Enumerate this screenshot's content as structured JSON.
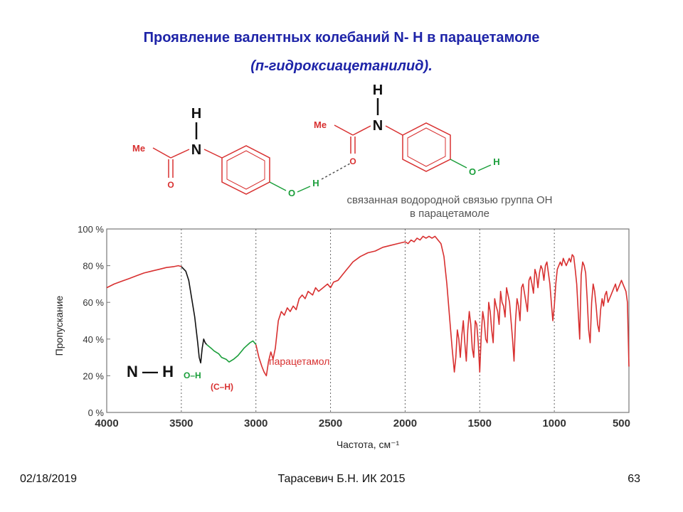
{
  "slide": {
    "title_line1": "Проявление валентных колебаний N- H в парацетамоле",
    "title_line2": "(п-гидроксиацетанилид).",
    "footer_date": "02/18/2019",
    "footer_author": "Тарасевич Б.Н.  ИК 2015",
    "footer_page": "63"
  },
  "molecules": {
    "atom_h": "H",
    "atom_n": "N",
    "atom_o": "O",
    "group_me": "Me",
    "caption_line1": "связанная водородной связью группа ОН",
    "caption_line2": "в парацетамоле",
    "colors": {
      "ring": "#d83030",
      "nh": "#111111",
      "oh": "#1a9e3a",
      "hbond": "#555555",
      "caption": "#555555"
    }
  },
  "chart_data": {
    "type": "line",
    "xlabel": "Частота, см⁻¹",
    "ylabel": "Пропускание",
    "xlim": [
      4000,
      500
    ],
    "ylim": [
      0,
      100
    ],
    "x_ticks": [
      4000,
      3500,
      3000,
      2500,
      2000,
      1500,
      1000,
      500
    ],
    "y_ticks": [
      {
        "v": 0,
        "label": "0 %"
      },
      {
        "v": 20,
        "label": "20 %"
      },
      {
        "v": 40,
        "label": "40 %"
      },
      {
        "v": 60,
        "label": "60 %"
      },
      {
        "v": 80,
        "label": "80 %"
      },
      {
        "v": 100,
        "label": "100 %"
      }
    ],
    "gridlines_x": [
      3500,
      3000,
      2500,
      2000,
      1500,
      1000
    ],
    "annotations": {
      "nh_label": "N — H",
      "oh_label": "O–H",
      "ch_label": "(C–H)",
      "series_label": "парацетамол"
    },
    "series": [
      {
        "color": "#d83030",
        "x": [
          4000,
          3950,
          3900,
          3850,
          3800,
          3750,
          3700,
          3650,
          3600,
          3550,
          3520,
          3500
        ],
        "y": [
          68,
          70,
          71.5,
          73,
          74.5,
          76,
          77,
          78,
          79,
          79.5,
          80,
          79.5
        ]
      },
      {
        "color": "#111111",
        "x": [
          3500,
          3470,
          3450,
          3430,
          3410,
          3400,
          3390,
          3380,
          3370,
          3360,
          3350,
          3340,
          3330
        ],
        "y": [
          79.5,
          77,
          72,
          62,
          52,
          45,
          38,
          30,
          27,
          35,
          40,
          38,
          37
        ]
      },
      {
        "color": "#1a9e3a",
        "x": [
          3330,
          3300,
          3280,
          3250,
          3230,
          3200,
          3180,
          3150,
          3120,
          3100,
          3080,
          3060,
          3040,
          3020,
          3000
        ],
        "y": [
          37,
          35,
          33.5,
          32,
          30,
          29,
          27.5,
          29,
          31,
          33,
          35,
          36.5,
          38,
          39,
          37
        ]
      },
      {
        "color": "#d83030",
        "x": [
          3000,
          2980,
          2960,
          2945,
          2930,
          2915,
          2900,
          2885,
          2870,
          2850,
          2830,
          2810,
          2790,
          2770,
          2750,
          2730,
          2710,
          2690,
          2670,
          2650,
          2620,
          2600,
          2580,
          2550,
          2520,
          2500,
          2480,
          2450,
          2420,
          2400,
          2370,
          2350,
          2300,
          2250,
          2200,
          2150,
          2100,
          2050,
          2000,
          1980,
          1960,
          1940,
          1920,
          1900,
          1880,
          1860,
          1840,
          1820,
          1800,
          1780,
          1760,
          1740,
          1720,
          1700,
          1685,
          1670,
          1660,
          1650,
          1640,
          1630,
          1620,
          1610,
          1600,
          1590,
          1580,
          1570,
          1560,
          1550,
          1540,
          1530,
          1520,
          1510,
          1500,
          1490,
          1480,
          1470,
          1460,
          1450,
          1440,
          1430,
          1420,
          1410,
          1400,
          1390,
          1380,
          1370,
          1360,
          1350,
          1340,
          1330,
          1320,
          1310,
          1300,
          1290,
          1280,
          1270,
          1260,
          1250,
          1240,
          1230,
          1220,
          1210,
          1200,
          1190,
          1180,
          1170,
          1160,
          1150,
          1140,
          1130,
          1120,
          1110,
          1100,
          1090,
          1080,
          1070,
          1060,
          1050,
          1040,
          1030,
          1020,
          1010,
          1000,
          990,
          980,
          970,
          960,
          950,
          940,
          930,
          920,
          910,
          900,
          890,
          880,
          870,
          860,
          850,
          840,
          830,
          820,
          810,
          800,
          790,
          780,
          770,
          760,
          750,
          740,
          730,
          720,
          710,
          700,
          690,
          680,
          670,
          660,
          650,
          640,
          630,
          620,
          610,
          600,
          590,
          580,
          570,
          560,
          550,
          540,
          530,
          520,
          510,
          500
        ],
        "y": [
          37,
          30,
          25,
          22,
          20,
          28,
          33,
          29,
          35,
          50,
          55,
          53,
          57,
          55,
          58,
          56,
          62,
          64,
          62,
          66,
          64,
          68,
          66,
          68,
          70,
          68,
          71,
          72,
          75,
          77,
          80,
          82,
          85,
          87,
          88,
          90,
          91,
          92,
          93,
          92,
          94,
          93,
          95,
          94,
          96,
          95,
          96,
          95,
          96,
          94,
          92,
          85,
          70,
          50,
          35,
          22,
          30,
          45,
          40,
          30,
          42,
          50,
          38,
          28,
          45,
          55,
          48,
          35,
          30,
          50,
          48,
          38,
          22,
          42,
          55,
          50,
          40,
          38,
          60,
          55,
          45,
          38,
          62,
          58,
          55,
          48,
          66,
          60,
          58,
          52,
          68,
          64,
          60,
          50,
          40,
          28,
          50,
          62,
          58,
          50,
          68,
          70,
          65,
          60,
          55,
          72,
          74,
          70,
          65,
          78,
          75,
          68,
          76,
          80,
          78,
          72,
          80,
          82,
          76,
          70,
          60,
          50,
          58,
          70,
          78,
          80,
          82,
          80,
          84,
          82,
          80,
          82,
          84,
          82,
          86,
          85,
          78,
          70,
          55,
          40,
          75,
          82,
          80,
          76,
          62,
          45,
          38,
          60,
          70,
          66,
          58,
          48,
          44,
          56,
          62,
          58,
          64,
          66,
          60,
          62,
          64,
          66,
          68,
          70,
          66,
          68,
          70,
          72,
          70,
          68,
          66,
          60,
          25
        ]
      }
    ]
  }
}
